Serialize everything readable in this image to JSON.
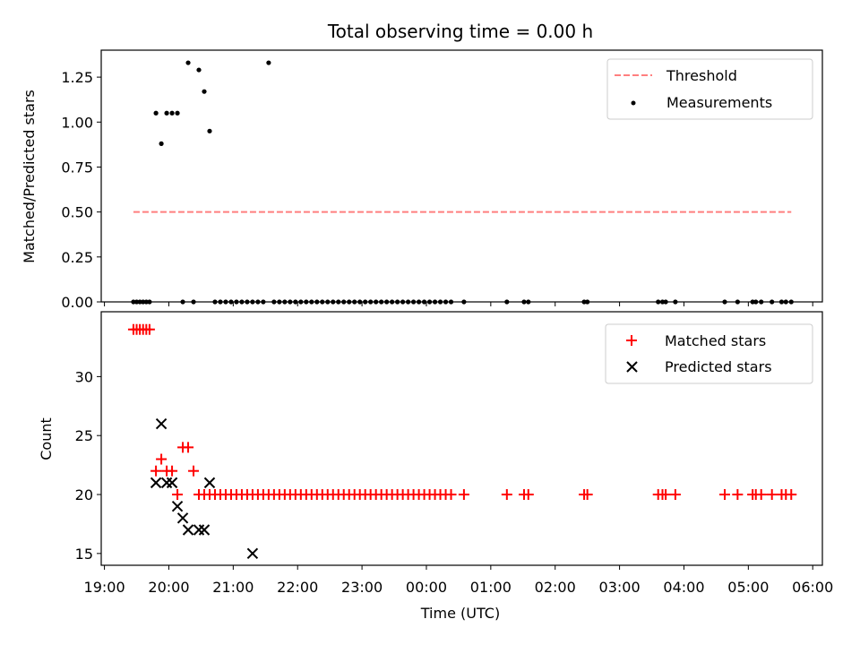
{
  "chart_data": [
    {
      "type": "scatter",
      "title": "Total observing time = 0.00 h",
      "xlabel": "",
      "ylabel": "Matched/Predicted stars",
      "ylim": [
        0,
        1.4
      ],
      "yticks": [
        "0.00",
        "0.25",
        "0.50",
        "0.75",
        "1.00",
        "1.25"
      ],
      "ytick_values": [
        0,
        0.25,
        0.5,
        0.75,
        1.0,
        1.25
      ],
      "xlim_hours": [
        18.95,
        30.15
      ],
      "legend": {
        "placement": "top-right"
      },
      "threshold": {
        "name": "Threshold",
        "x_start": "19:27",
        "x_end": "05:40",
        "y": 0.5,
        "color": "#ff7f7f",
        "style": "dashed"
      },
      "series": [
        {
          "name": "Measurements",
          "color": "#000000",
          "marker": "dot",
          "x": [
            "19:27",
            "19:30",
            "19:33",
            "19:36",
            "19:39",
            "19:42",
            "19:48",
            "19:53",
            "19:58",
            "20:03",
            "20:08",
            "20:13",
            "20:18",
            "20:23",
            "20:28",
            "20:33",
            "20:38",
            "20:43",
            "20:48",
            "20:53",
            "20:58",
            "21:03",
            "21:08",
            "21:13",
            "21:18",
            "21:23",
            "21:28",
            "21:33",
            "21:38",
            "21:43",
            "21:48",
            "21:53",
            "21:58",
            "22:03",
            "22:08",
            "22:13",
            "22:18",
            "22:23",
            "22:28",
            "22:33",
            "22:38",
            "22:43",
            "22:48",
            "22:53",
            "22:58",
            "23:03",
            "23:08",
            "23:13",
            "23:18",
            "23:23",
            "23:28",
            "23:33",
            "23:38",
            "23:43",
            "23:48",
            "23:53",
            "23:58",
            "00:03",
            "00:08",
            "00:13",
            "00:18",
            "00:23",
            "00:35",
            "01:15",
            "01:31",
            "01:35",
            "02:27",
            "02:30",
            "03:36",
            "03:40",
            "03:43",
            "03:52",
            "04:38",
            "04:50",
            "05:04",
            "05:07",
            "05:12",
            "05:22",
            "05:31",
            "05:35",
            "05:40"
          ],
          "y": [
            0,
            0,
            0,
            0,
            0,
            0,
            1.05,
            0.88,
            1.05,
            1.05,
            1.05,
            0,
            1.33,
            0,
            1.29,
            1.17,
            0.95,
            0,
            0,
            0,
            0,
            0,
            0,
            0,
            0,
            0,
            0,
            1.33,
            0,
            0,
            0,
            0,
            0,
            0,
            0,
            0,
            0,
            0,
            0,
            0,
            0,
            0,
            0,
            0,
            0,
            0,
            0,
            0,
            0,
            0,
            0,
            0,
            0,
            0,
            0,
            0,
            0,
            0,
            0,
            0,
            0,
            0,
            0,
            0,
            0,
            0,
            0,
            0,
            0,
            0,
            0,
            0,
            0,
            0,
            0,
            0,
            0,
            0,
            0,
            0,
            0
          ]
        }
      ]
    },
    {
      "type": "scatter",
      "title": "",
      "xlabel": "Time (UTC)",
      "ylabel": "Count",
      "ylim": [
        14,
        35.5
      ],
      "yticks": [
        "15",
        "20",
        "25",
        "30"
      ],
      "ytick_values": [
        15,
        20,
        25,
        30
      ],
      "xlim_hours": [
        18.95,
        30.15
      ],
      "xticks": [
        "19:00",
        "20:00",
        "21:00",
        "22:00",
        "23:00",
        "00:00",
        "01:00",
        "02:00",
        "03:00",
        "04:00",
        "05:00",
        "06:00"
      ],
      "xtick_hours": [
        19,
        20,
        21,
        22,
        23,
        24,
        25,
        26,
        27,
        28,
        29,
        30
      ],
      "legend": {
        "placement": "top-right"
      },
      "series": [
        {
          "name": "Matched stars",
          "color": "#ff0000",
          "marker": "plus",
          "x": [
            "19:27",
            "19:30",
            "19:33",
            "19:36",
            "19:39",
            "19:42",
            "19:48",
            "19:53",
            "19:58",
            "20:03",
            "20:08",
            "20:13",
            "20:18",
            "20:23",
            "20:28",
            "20:33",
            "20:38",
            "20:43",
            "20:48",
            "20:53",
            "20:58",
            "21:03",
            "21:08",
            "21:13",
            "21:18",
            "21:23",
            "21:28",
            "21:33",
            "21:38",
            "21:43",
            "21:48",
            "21:53",
            "21:58",
            "22:03",
            "22:08",
            "22:13",
            "22:18",
            "22:23",
            "22:28",
            "22:33",
            "22:38",
            "22:43",
            "22:48",
            "22:53",
            "22:58",
            "23:03",
            "23:08",
            "23:13",
            "23:18",
            "23:23",
            "23:28",
            "23:33",
            "23:38",
            "23:43",
            "23:48",
            "23:53",
            "23:58",
            "00:03",
            "00:08",
            "00:13",
            "00:18",
            "00:23",
            "00:35",
            "01:15",
            "01:31",
            "01:35",
            "02:27",
            "02:30",
            "03:36",
            "03:40",
            "03:43",
            "03:52",
            "04:38",
            "04:50",
            "05:04",
            "05:07",
            "05:12",
            "05:22",
            "05:31",
            "05:35",
            "05:40"
          ],
          "y": [
            34,
            34,
            34,
            34,
            34,
            34,
            22,
            23,
            22,
            22,
            20,
            24,
            24,
            22,
            20,
            20,
            20,
            20,
            20,
            20,
            20,
            20,
            20,
            20,
            20,
            20,
            20,
            20,
            20,
            20,
            20,
            20,
            20,
            20,
            20,
            20,
            20,
            20,
            20,
            20,
            20,
            20,
            20,
            20,
            20,
            20,
            20,
            20,
            20,
            20,
            20,
            20,
            20,
            20,
            20,
            20,
            20,
            20,
            20,
            20,
            20,
            20,
            20,
            20,
            20,
            20,
            20,
            20,
            20,
            20,
            20,
            20,
            20,
            20,
            20,
            20,
            20,
            20,
            20,
            20,
            20
          ]
        },
        {
          "name": "Predicted stars",
          "color": "#000000",
          "marker": "x",
          "x": [
            "19:48",
            "19:53",
            "19:58",
            "20:03",
            "20:08",
            "20:13",
            "20:18",
            "20:28",
            "20:33",
            "20:38",
            "21:18"
          ],
          "y": [
            21,
            26,
            21,
            21,
            19,
            18,
            17,
            17,
            17,
            21,
            15
          ]
        }
      ]
    }
  ]
}
